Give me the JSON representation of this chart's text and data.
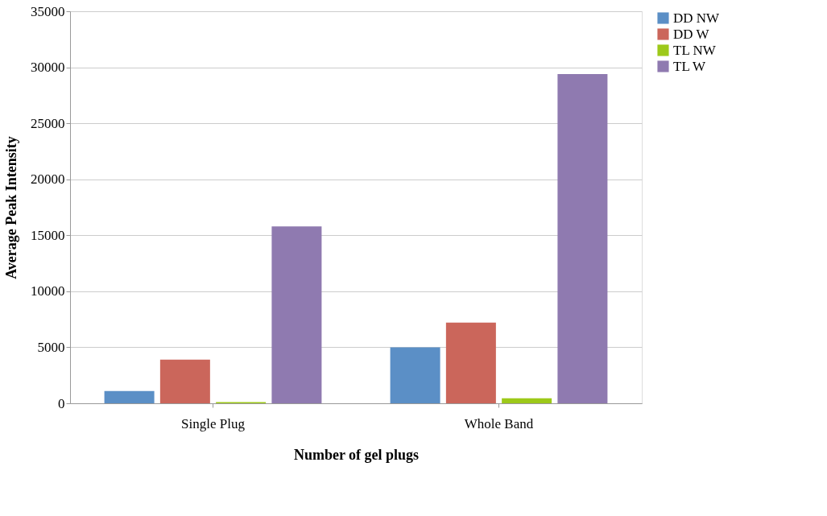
{
  "chart_data": {
    "type": "bar",
    "xlabel": "Number of gel plugs",
    "ylabel": "Average Peak Intensity",
    "categories": [
      "Single Plug",
      "Whole Band"
    ],
    "series": [
      {
        "name": "DD NW",
        "color": "#5b8fc6",
        "values": [
          1100,
          5000
        ]
      },
      {
        "name": "DD W",
        "color": "#cb665b",
        "values": [
          3900,
          7200
        ]
      },
      {
        "name": "TL NW",
        "color": "#9dc91a",
        "values": [
          100,
          450
        ]
      },
      {
        "name": "TL W",
        "color": "#8f7ab0",
        "values": [
          15800,
          29400
        ]
      }
    ],
    "ylim": [
      0,
      35000
    ],
    "yticks": [
      0,
      5000,
      10000,
      15000,
      20000,
      25000,
      30000,
      35000
    ],
    "grid": "y",
    "legend": "right"
  }
}
